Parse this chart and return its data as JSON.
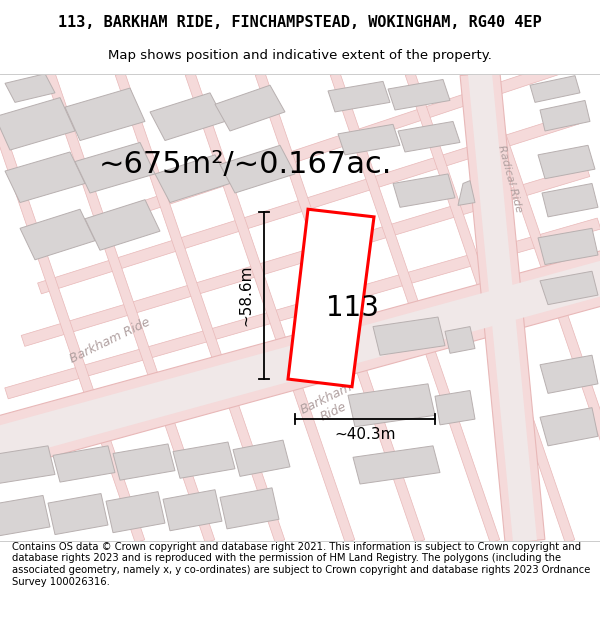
{
  "title_line1": "113, BARKHAM RIDE, FINCHAMPSTEAD, WOKINGHAM, RG40 4EP",
  "title_line2": "Map shows position and indicative extent of the property.",
  "footer_text": "Contains OS data © Crown copyright and database right 2021. This information is subject to Crown copyright and database rights 2023 and is reproduced with the permission of HM Land Registry. The polygons (including the associated geometry, namely x, y co-ordinates) are subject to Crown copyright and database rights 2023 Ordnance Survey 100026316.",
  "area_label": "~675m²/~0.167ac.",
  "width_label": "~40.3m",
  "height_label": "~58.6m",
  "house_number": "113",
  "map_bg": "#f7f5f5",
  "road_fill": "#f5dada",
  "road_edge": "#e8b8b8",
  "road_center": "#eeeeee",
  "building_fill": "#d8d4d4",
  "building_edge": "#b8b0b0",
  "plot_color": "#ff0000",
  "road_label_color": "#b0a0a0",
  "radical_ride_label": "#b0a0a0",
  "title_fontsize": 11,
  "subtitle_fontsize": 9.5,
  "area_fontsize": 22,
  "dim_fontsize": 11,
  "house_fontsize": 20,
  "footer_fontsize": 7.2,
  "title_font": "DejaVu Sans Mono",
  "body_font": "DejaVu Sans"
}
